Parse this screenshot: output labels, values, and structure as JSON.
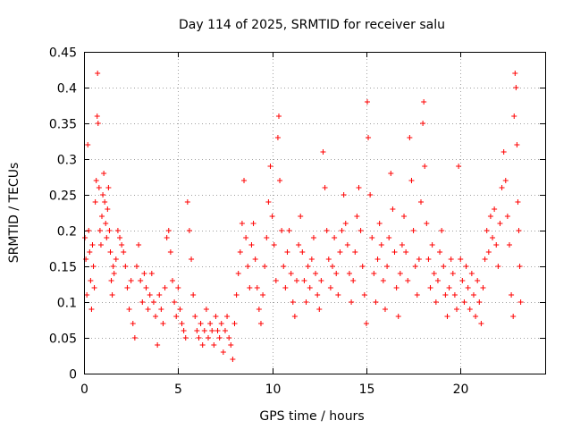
{
  "chart_data": {
    "type": "scatter",
    "title": "Day 114 of 2025, SRMTID for receiver salu",
    "xlabel": "GPS time / hours",
    "ylabel": "SRMTID / TECUs",
    "xlim": [
      0,
      24.5
    ],
    "ylim": [
      0,
      0.45
    ],
    "x_ticks": [
      0,
      5,
      10,
      15,
      20
    ],
    "x_tick_labels": [
      "0",
      "5",
      "10",
      "15",
      "20"
    ],
    "y_ticks": [
      0,
      0.05,
      0.1,
      0.15,
      0.2,
      0.25,
      0.3,
      0.35,
      0.4,
      0.45
    ],
    "y_tick_labels": [
      "0",
      "0.05",
      "0.1",
      "0.15",
      "0.2",
      "0.25",
      "0.3",
      "0.35",
      "0.4",
      "0.45"
    ],
    "grid": true,
    "marker": "+",
    "color": "#ff0000",
    "series": [
      {
        "name": "SRMTID",
        "points": [
          [
            0.05,
            0.19
          ],
          [
            0.1,
            0.16
          ],
          [
            0.15,
            0.11
          ],
          [
            0.2,
            0.32
          ],
          [
            0.25,
            0.2
          ],
          [
            0.3,
            0.17
          ],
          [
            0.35,
            0.13
          ],
          [
            0.4,
            0.09
          ],
          [
            0.45,
            0.18
          ],
          [
            0.5,
            0.15
          ],
          [
            0.55,
            0.12
          ],
          [
            0.6,
            0.24
          ],
          [
            0.65,
            0.27
          ],
          [
            0.7,
            0.36
          ],
          [
            0.72,
            0.42
          ],
          [
            0.75,
            0.35
          ],
          [
            0.8,
            0.26
          ],
          [
            0.85,
            0.2
          ],
          [
            0.9,
            0.18
          ],
          [
            0.95,
            0.22
          ],
          [
            1.0,
            0.25
          ],
          [
            1.05,
            0.28
          ],
          [
            1.1,
            0.24
          ],
          [
            1.15,
            0.21
          ],
          [
            1.2,
            0.19
          ],
          [
            1.25,
            0.23
          ],
          [
            1.3,
            0.26
          ],
          [
            1.35,
            0.2
          ],
          [
            1.4,
            0.17
          ],
          [
            1.45,
            0.13
          ],
          [
            1.5,
            0.11
          ],
          [
            1.55,
            0.15
          ],
          [
            1.6,
            0.14
          ],
          [
            1.7,
            0.16
          ],
          [
            1.8,
            0.2
          ],
          [
            1.9,
            0.19
          ],
          [
            2.0,
            0.18
          ],
          [
            2.1,
            0.17
          ],
          [
            2.2,
            0.15
          ],
          [
            2.3,
            0.12
          ],
          [
            2.4,
            0.09
          ],
          [
            2.5,
            0.13
          ],
          [
            2.6,
            0.07
          ],
          [
            2.7,
            0.05
          ],
          [
            2.8,
            0.15
          ],
          [
            2.9,
            0.18
          ],
          [
            3.0,
            0.13
          ],
          [
            3.1,
            0.1
          ],
          [
            3.2,
            0.14
          ],
          [
            3.3,
            0.12
          ],
          [
            3.4,
            0.09
          ],
          [
            3.5,
            0.11
          ],
          [
            3.6,
            0.14
          ],
          [
            3.7,
            0.1
          ],
          [
            3.8,
            0.08
          ],
          [
            3.9,
            0.04
          ],
          [
            4.0,
            0.11
          ],
          [
            4.1,
            0.09
          ],
          [
            4.2,
            0.07
          ],
          [
            4.3,
            0.12
          ],
          [
            4.4,
            0.19
          ],
          [
            4.5,
            0.2
          ],
          [
            4.6,
            0.17
          ],
          [
            4.7,
            0.13
          ],
          [
            4.8,
            0.1
          ],
          [
            4.9,
            0.08
          ],
          [
            5.0,
            0.12
          ],
          [
            5.1,
            0.09
          ],
          [
            5.2,
            0.07
          ],
          [
            5.3,
            0.06
          ],
          [
            5.4,
            0.05
          ],
          [
            5.5,
            0.24
          ],
          [
            5.6,
            0.2
          ],
          [
            5.7,
            0.16
          ],
          [
            5.8,
            0.11
          ],
          [
            5.9,
            0.08
          ],
          [
            6.0,
            0.06
          ],
          [
            6.1,
            0.05
          ],
          [
            6.2,
            0.07
          ],
          [
            6.3,
            0.04
          ],
          [
            6.4,
            0.06
          ],
          [
            6.5,
            0.09
          ],
          [
            6.6,
            0.05
          ],
          [
            6.7,
            0.07
          ],
          [
            6.8,
            0.06
          ],
          [
            6.9,
            0.04
          ],
          [
            7.0,
            0.08
          ],
          [
            7.1,
            0.06
          ],
          [
            7.2,
            0.05
          ],
          [
            7.3,
            0.07
          ],
          [
            7.4,
            0.03
          ],
          [
            7.5,
            0.06
          ],
          [
            7.6,
            0.08
          ],
          [
            7.7,
            0.05
          ],
          [
            7.8,
            0.04
          ],
          [
            7.9,
            0.02
          ],
          [
            8.0,
            0.07
          ],
          [
            8.1,
            0.11
          ],
          [
            8.2,
            0.14
          ],
          [
            8.3,
            0.17
          ],
          [
            8.4,
            0.21
          ],
          [
            8.5,
            0.27
          ],
          [
            8.6,
            0.19
          ],
          [
            8.7,
            0.15
          ],
          [
            8.8,
            0.12
          ],
          [
            8.9,
            0.18
          ],
          [
            9.0,
            0.21
          ],
          [
            9.1,
            0.16
          ],
          [
            9.2,
            0.12
          ],
          [
            9.3,
            0.09
          ],
          [
            9.4,
            0.07
          ],
          [
            9.5,
            0.11
          ],
          [
            9.6,
            0.15
          ],
          [
            9.7,
            0.19
          ],
          [
            9.8,
            0.24
          ],
          [
            9.9,
            0.29
          ],
          [
            10.0,
            0.22
          ],
          [
            10.1,
            0.18
          ],
          [
            10.2,
            0.13
          ],
          [
            10.3,
            0.33
          ],
          [
            10.35,
            0.36
          ],
          [
            10.4,
            0.27
          ],
          [
            10.5,
            0.2
          ],
          [
            10.6,
            0.15
          ],
          [
            10.7,
            0.12
          ],
          [
            10.8,
            0.17
          ],
          [
            10.9,
            0.2
          ],
          [
            11.0,
            0.14
          ],
          [
            11.1,
            0.1
          ],
          [
            11.2,
            0.08
          ],
          [
            11.3,
            0.13
          ],
          [
            11.4,
            0.18
          ],
          [
            11.5,
            0.22
          ],
          [
            11.6,
            0.17
          ],
          [
            11.7,
            0.13
          ],
          [
            11.8,
            0.1
          ],
          [
            11.9,
            0.15
          ],
          [
            12.0,
            0.12
          ],
          [
            12.1,
            0.16
          ],
          [
            12.2,
            0.19
          ],
          [
            12.3,
            0.14
          ],
          [
            12.4,
            0.11
          ],
          [
            12.5,
            0.09
          ],
          [
            12.6,
            0.13
          ],
          [
            12.7,
            0.31
          ],
          [
            12.8,
            0.26
          ],
          [
            12.9,
            0.2
          ],
          [
            13.0,
            0.16
          ],
          [
            13.1,
            0.12
          ],
          [
            13.2,
            0.15
          ],
          [
            13.3,
            0.19
          ],
          [
            13.4,
            0.14
          ],
          [
            13.5,
            0.11
          ],
          [
            13.6,
            0.17
          ],
          [
            13.7,
            0.2
          ],
          [
            13.8,
            0.25
          ],
          [
            13.9,
            0.21
          ],
          [
            14.0,
            0.18
          ],
          [
            14.1,
            0.14
          ],
          [
            14.2,
            0.1
          ],
          [
            14.3,
            0.13
          ],
          [
            14.4,
            0.17
          ],
          [
            14.5,
            0.22
          ],
          [
            14.6,
            0.26
          ],
          [
            14.7,
            0.2
          ],
          [
            14.8,
            0.15
          ],
          [
            14.9,
            0.11
          ],
          [
            15.0,
            0.07
          ],
          [
            15.05,
            0.38
          ],
          [
            15.1,
            0.33
          ],
          [
            15.2,
            0.25
          ],
          [
            15.3,
            0.19
          ],
          [
            15.4,
            0.14
          ],
          [
            15.5,
            0.1
          ],
          [
            15.6,
            0.16
          ],
          [
            15.7,
            0.21
          ],
          [
            15.8,
            0.18
          ],
          [
            15.9,
            0.13
          ],
          [
            16.0,
            0.09
          ],
          [
            16.1,
            0.15
          ],
          [
            16.2,
            0.19
          ],
          [
            16.3,
            0.28
          ],
          [
            16.4,
            0.23
          ],
          [
            16.5,
            0.17
          ],
          [
            16.6,
            0.12
          ],
          [
            16.7,
            0.08
          ],
          [
            16.8,
            0.14
          ],
          [
            16.9,
            0.18
          ],
          [
            17.0,
            0.22
          ],
          [
            17.1,
            0.17
          ],
          [
            17.2,
            0.13
          ],
          [
            17.3,
            0.33
          ],
          [
            17.4,
            0.27
          ],
          [
            17.5,
            0.2
          ],
          [
            17.6,
            0.15
          ],
          [
            17.7,
            0.11
          ],
          [
            17.8,
            0.16
          ],
          [
            17.9,
            0.24
          ],
          [
            18.0,
            0.35
          ],
          [
            18.05,
            0.38
          ],
          [
            18.1,
            0.29
          ],
          [
            18.2,
            0.21
          ],
          [
            18.3,
            0.16
          ],
          [
            18.4,
            0.12
          ],
          [
            18.5,
            0.18
          ],
          [
            18.6,
            0.14
          ],
          [
            18.7,
            0.1
          ],
          [
            18.8,
            0.13
          ],
          [
            18.9,
            0.17
          ],
          [
            19.0,
            0.2
          ],
          [
            19.1,
            0.15
          ],
          [
            19.2,
            0.11
          ],
          [
            19.3,
            0.08
          ],
          [
            19.4,
            0.12
          ],
          [
            19.5,
            0.16
          ],
          [
            19.6,
            0.14
          ],
          [
            19.7,
            0.11
          ],
          [
            19.8,
            0.09
          ],
          [
            19.9,
            0.29
          ],
          [
            20.0,
            0.16
          ],
          [
            20.1,
            0.13
          ],
          [
            20.2,
            0.1
          ],
          [
            20.3,
            0.15
          ],
          [
            20.4,
            0.12
          ],
          [
            20.5,
            0.09
          ],
          [
            20.6,
            0.14
          ],
          [
            20.7,
            0.11
          ],
          [
            20.8,
            0.08
          ],
          [
            20.9,
            0.13
          ],
          [
            21.0,
            0.1
          ],
          [
            21.1,
            0.07
          ],
          [
            21.2,
            0.12
          ],
          [
            21.3,
            0.16
          ],
          [
            21.4,
            0.2
          ],
          [
            21.5,
            0.17
          ],
          [
            21.6,
            0.22
          ],
          [
            21.7,
            0.19
          ],
          [
            21.8,
            0.23
          ],
          [
            21.9,
            0.18
          ],
          [
            22.0,
            0.15
          ],
          [
            22.1,
            0.21
          ],
          [
            22.2,
            0.26
          ],
          [
            22.3,
            0.31
          ],
          [
            22.4,
            0.27
          ],
          [
            22.5,
            0.22
          ],
          [
            22.6,
            0.18
          ],
          [
            22.7,
            0.11
          ],
          [
            22.8,
            0.08
          ],
          [
            22.85,
            0.36
          ],
          [
            22.9,
            0.42
          ],
          [
            22.95,
            0.4
          ],
          [
            23.0,
            0.32
          ],
          [
            23.05,
            0.24
          ],
          [
            23.1,
            0.2
          ],
          [
            23.15,
            0.15
          ],
          [
            23.2,
            0.1
          ]
        ]
      }
    ]
  }
}
